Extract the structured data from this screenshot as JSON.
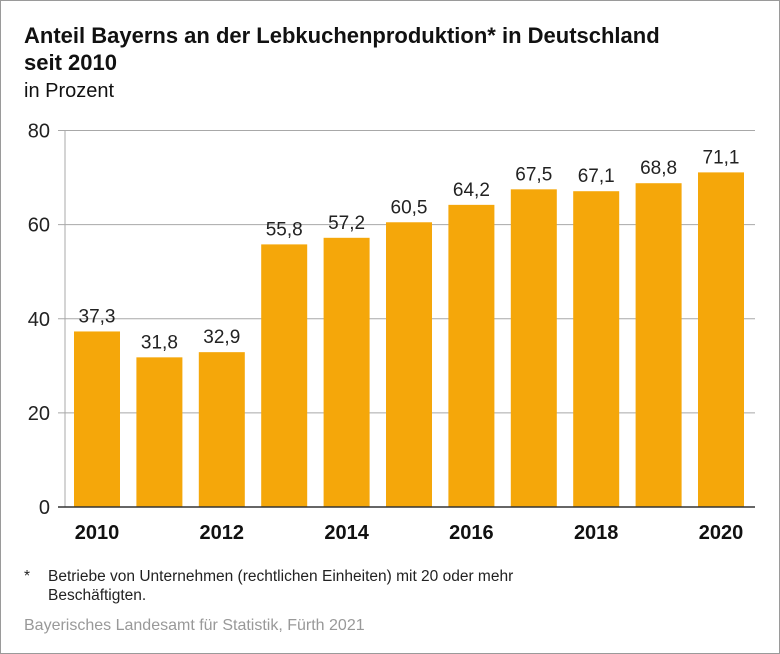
{
  "chart_data": {
    "type": "bar",
    "title": "Anteil Bayerns an der Lebkuchenproduktion* in Deutschland seit 2010",
    "subtitle": "in Prozent",
    "categories": [
      "2010",
      "2011",
      "2012",
      "2013",
      "2014",
      "2015",
      "2016",
      "2017",
      "2018",
      "2019",
      "2020"
    ],
    "x_tick_labels": [
      "2010",
      "",
      "2012",
      "",
      "2014",
      "",
      "2016",
      "",
      "2018",
      "",
      "2020"
    ],
    "values": [
      37.3,
      31.8,
      32.9,
      55.8,
      57.2,
      60.5,
      64.2,
      67.5,
      67.1,
      68.8,
      71.1
    ],
    "value_labels": [
      "37,3",
      "31,8",
      "32,9",
      "55,8",
      "57,2",
      "60,5",
      "64,2",
      "67,5",
      "67,1",
      "68,8",
      "71,1"
    ],
    "ylim": [
      0,
      80
    ],
    "y_ticks": [
      0,
      20,
      40,
      60,
      80
    ],
    "y_tick_labels": [
      "0",
      "20",
      "40",
      "60",
      "80"
    ],
    "grid": true,
    "bar_color": "#f5a70a",
    "xlabel": "",
    "ylabel": ""
  },
  "footnote": {
    "marker": "*",
    "text": "Betriebe von Unternehmen (rechtlichen  Einheiten) mit 20 oder mehr Beschäftigten."
  },
  "source": "Bayerisches Landesamt für Statistik, Fürth 2021"
}
